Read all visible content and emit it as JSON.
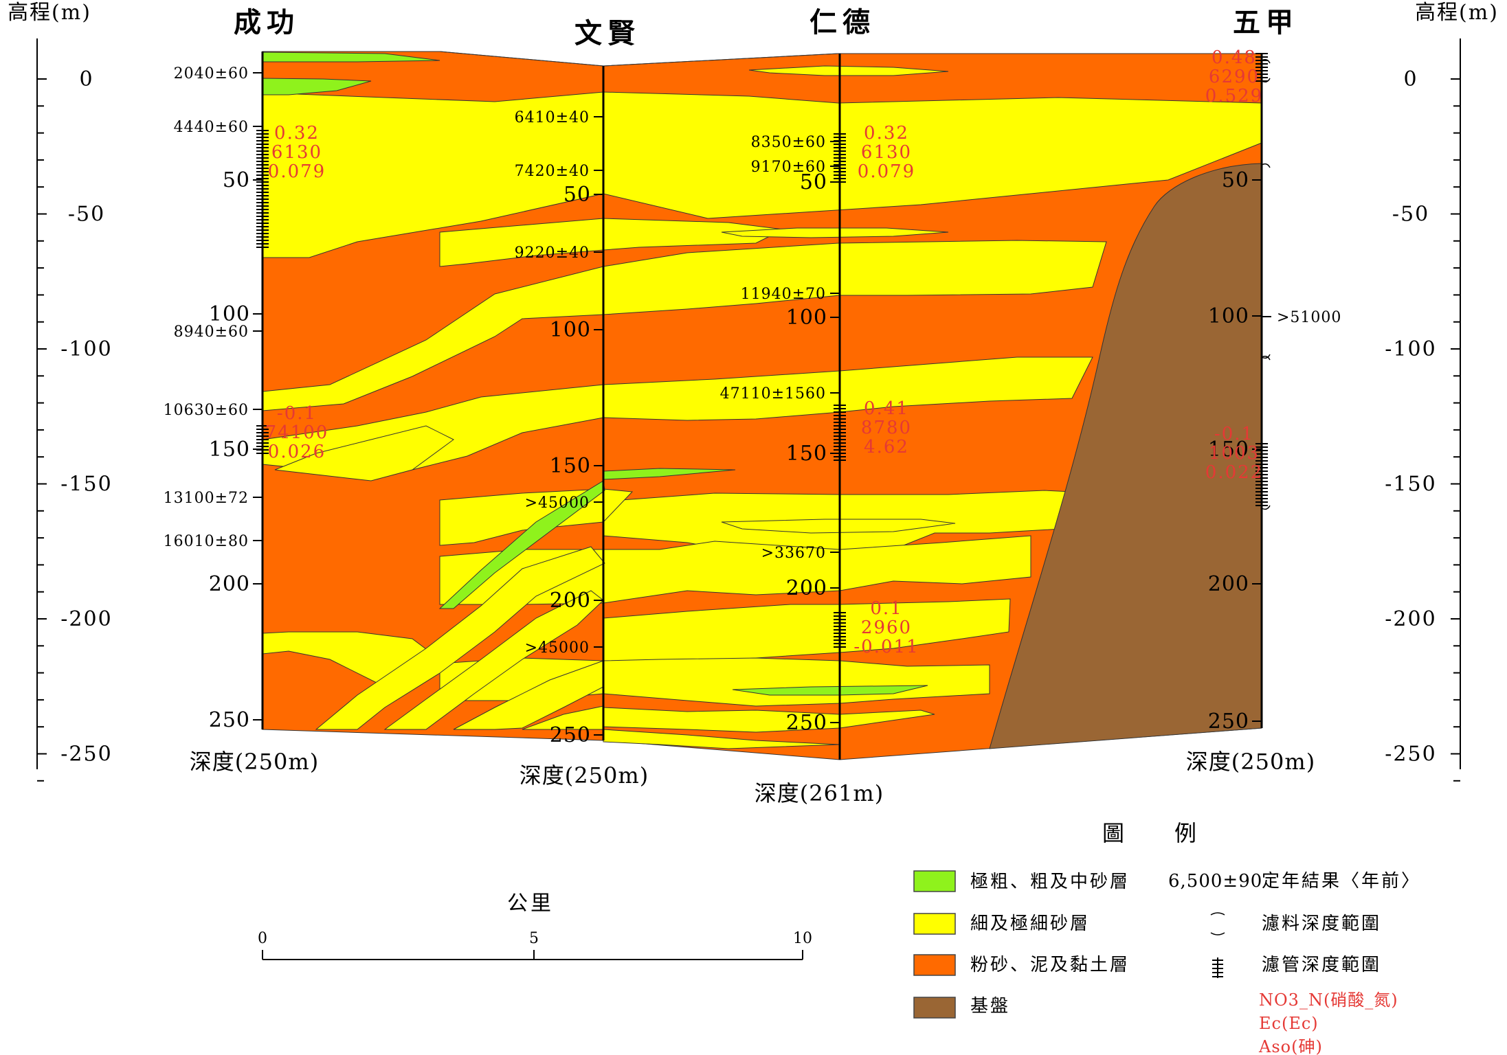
{
  "colors": {
    "coarse_sand": "#8ff21c",
    "fine_sand": "#ffff00",
    "silt_clay": "#ff6a00",
    "bedrock": "#9a6634",
    "annotation_red": "#e53935"
  },
  "axis": {
    "left_title": "高程(m)",
    "right_title": "高程(m)",
    "ticks": [
      "0",
      "-50",
      "-100",
      "-150",
      "-200",
      "-250"
    ]
  },
  "wells": [
    {
      "id": "chenggong",
      "name": "成功",
      "depth_caption": "深度(250m)",
      "depth_labels": [
        "50",
        "100",
        "150",
        "200",
        "250"
      ],
      "dates": [
        "2040±60",
        "4440±60",
        "8940±60",
        "10630±60",
        "13100±72",
        "16010±80"
      ],
      "water_quality": [
        [
          "0.32",
          "6130",
          "0.079"
        ],
        [
          "-0.1",
          "74100",
          "0.026"
        ]
      ]
    },
    {
      "id": "wenxian",
      "name": "文賢",
      "depth_caption": "深度(250m)",
      "depth_labels": [
        "50",
        "100",
        "150",
        "200",
        "250"
      ],
      "dates": [
        "6410±40",
        "7420±40",
        "9220±40",
        ">45000",
        ">45000"
      ],
      "water_quality": []
    },
    {
      "id": "rende",
      "name": "仁德",
      "depth_caption": "深度(261m)",
      "depth_labels": [
        "50",
        "100",
        "150",
        "200",
        "250"
      ],
      "dates": [
        "8350±60",
        "9170±60",
        "11940±70",
        "47110±1560",
        ">33670"
      ],
      "water_quality": [
        [
          "0.32",
          "6130",
          "0.079"
        ],
        [
          "0.41",
          "8780",
          "4.62"
        ],
        [
          "0.1",
          "2960",
          "-0.011"
        ]
      ]
    },
    {
      "id": "wujia",
      "name": "五甲",
      "depth_caption": "深度(250m)",
      "depth_labels": [
        "50",
        "100",
        "150",
        "200",
        "250"
      ],
      "dates": [
        ">51000"
      ],
      "water_quality": [
        [
          "0.48",
          "6290",
          "0.529"
        ],
        [
          "-0.1",
          "1003",
          "0.022"
        ]
      ]
    }
  ],
  "scale_bar": {
    "title": "公里",
    "ticks": [
      "0",
      "5",
      "10"
    ]
  },
  "legend": {
    "title": "圖　　例",
    "items": [
      {
        "label": "極粗、粗及中砂層",
        "color": "#8ff21c"
      },
      {
        "label": "細及極細砂層",
        "color": "#ffff00"
      },
      {
        "label": "粉砂、泥及黏土層",
        "color": "#ff6a00"
      },
      {
        "label": "基盤",
        "color": "#9a6634"
      }
    ],
    "date_example": "6,500±90",
    "date_label": "定年結果〈年前〉",
    "filter_label": "濾料深度範圍",
    "screen_label": "濾管深度範圍",
    "no3_label": "NO3_N(硝酸_氮)",
    "ec_label": "Ec(Ec)",
    "aso_label": "Aso(砷)"
  }
}
